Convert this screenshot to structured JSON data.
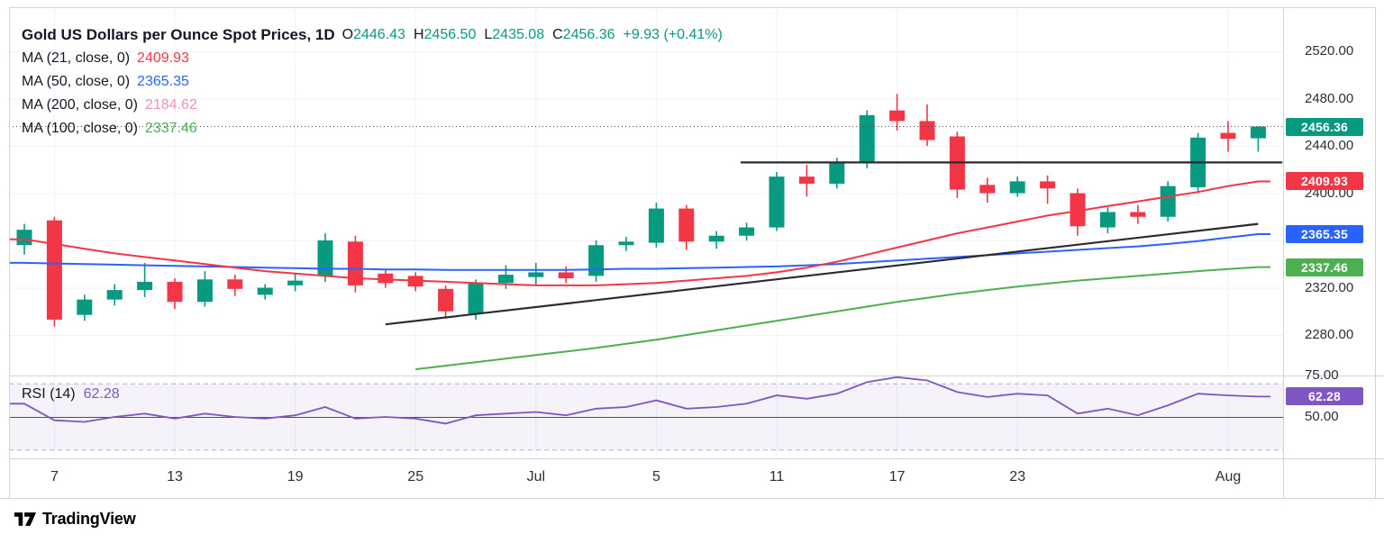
{
  "header": {
    "title": "Gold US Dollars per Ounce Spot Prices, 1D",
    "ohlc": {
      "o_label": "O",
      "o_value": "2446.43",
      "h_label": "H",
      "h_value": "2456.50",
      "l_label": "L",
      "l_value": "2435.08",
      "c_label": "C",
      "c_value": "2456.36",
      "change": "+9.93 (+0.41%)"
    },
    "ma_rows": [
      {
        "label": "MA (21, close, 0)",
        "value": "2409.93",
        "color": "#F23645"
      },
      {
        "label": "MA (50, close, 0)",
        "value": "2365.35",
        "color": "#2962FF"
      },
      {
        "label": "MA (200, close, 0)",
        "value": "2184.62",
        "color": "#F48FB1"
      },
      {
        "label": "MA (100, close, 0)",
        "value": "2337.46",
        "color": "#4CAF50"
      }
    ],
    "rsi": {
      "label": "RSI (14)",
      "value": "62.28",
      "color": "#7E57C2"
    }
  },
  "price_axis": {
    "ticks": [
      {
        "label": "2520.00",
        "price": 2520
      },
      {
        "label": "2480.00",
        "price": 2480
      },
      {
        "label": "2440.00",
        "price": 2440
      },
      {
        "label": "2400.00",
        "price": 2400
      },
      {
        "label": "2320.00",
        "price": 2320
      },
      {
        "label": "2280.00",
        "price": 2280
      }
    ],
    "badges": [
      {
        "label": "2456.36",
        "price": 2456.36,
        "bg": "#089981"
      },
      {
        "label": "2409.93",
        "price": 2409.93,
        "bg": "#F23645"
      },
      {
        "label": "2365.35",
        "price": 2365.35,
        "bg": "#2962FF"
      },
      {
        "label": "2337.46",
        "price": 2337.46,
        "bg": "#4CAF50"
      }
    ]
  },
  "rsi_axis": {
    "ticks": [
      {
        "label": "75.00",
        "value": 75
      },
      {
        "label": "50.00",
        "value": 50
      }
    ],
    "badge": {
      "label": "62.28",
      "value": 62.28,
      "bg": "#7E57C2"
    }
  },
  "time_axis": {
    "labels": [
      {
        "label": "7",
        "index": 1
      },
      {
        "label": "13",
        "index": 5
      },
      {
        "label": "19",
        "index": 9
      },
      {
        "label": "25",
        "index": 13
      },
      {
        "label": "Jul",
        "index": 17
      },
      {
        "label": "5",
        "index": 21
      },
      {
        "label": "11",
        "index": 25
      },
      {
        "label": "17",
        "index": 29
      },
      {
        "label": "23",
        "index": 33
      },
      {
        "label": "Aug",
        "index": 40
      }
    ]
  },
  "footer": {
    "logo_text": "TradingView"
  },
  "colors": {
    "up": "#089981",
    "down": "#F23645",
    "ma21": "#F23645",
    "ma50": "#2962FF",
    "ma100": "#4CAF50",
    "ma200": "#F48FB1",
    "rsi": "#7E57C2",
    "rsi_band_fill": "rgba(126,87,194,0.08)",
    "rsi_band_line": "#b7a8dc",
    "rsi_mid_line": "#4a4e59",
    "grid": "#f0f2f6",
    "separator": "#d1d4dc",
    "trendline": "#2b2b2b",
    "close_line": "#4a4a4a",
    "text": "#131722"
  },
  "chart_data": {
    "type": "candlestick",
    "title": "Gold US Dollars per Ounce Spot Prices, 1D",
    "timeframe": "1D",
    "last_bar": {
      "open": 2446.43,
      "high": 2456.5,
      "low": 2435.08,
      "close": 2456.36,
      "change": 9.93,
      "change_pct": 0.41
    },
    "price_axis_ticks": [
      2280,
      2320,
      2360,
      2400,
      2440,
      2480,
      2520
    ],
    "candles": [
      [
        2356,
        2374,
        2348,
        2369
      ],
      [
        2377,
        2380,
        2287,
        2293
      ],
      [
        2297,
        2314,
        2292,
        2310
      ],
      [
        2310,
        2323,
        2305,
        2318
      ],
      [
        2318,
        2341,
        2312,
        2325
      ],
      [
        2325,
        2328,
        2302,
        2308
      ],
      [
        2308,
        2334,
        2304,
        2327
      ],
      [
        2327,
        2331,
        2313,
        2319
      ],
      [
        2314,
        2323,
        2310,
        2320
      ],
      [
        2322,
        2332,
        2317,
        2326
      ],
      [
        2330,
        2366,
        2325,
        2360
      ],
      [
        2359,
        2364,
        2316,
        2322
      ],
      [
        2332,
        2336,
        2320,
        2324
      ],
      [
        2330,
        2333,
        2317,
        2321
      ],
      [
        2319,
        2322,
        2294,
        2300
      ],
      [
        2298,
        2327,
        2293,
        2324
      ],
      [
        2324,
        2339,
        2319,
        2331
      ],
      [
        2329,
        2341,
        2322,
        2333
      ],
      [
        2333,
        2338,
        2324,
        2328
      ],
      [
        2330,
        2360,
        2325,
        2356
      ],
      [
        2356,
        2363,
        2351,
        2359
      ],
      [
        2358,
        2392,
        2354,
        2387
      ],
      [
        2387,
        2390,
        2352,
        2359
      ],
      [
        2359,
        2368,
        2353,
        2364
      ],
      [
        2364,
        2375,
        2360,
        2371
      ],
      [
        2371,
        2418,
        2368,
        2414
      ],
      [
        2414,
        2424,
        2397,
        2408
      ],
      [
        2408,
        2430,
        2404,
        2426
      ],
      [
        2426,
        2470,
        2421,
        2466
      ],
      [
        2470,
        2484,
        2453,
        2461
      ],
      [
        2461,
        2475,
        2440,
        2445
      ],
      [
        2448,
        2452,
        2396,
        2403
      ],
      [
        2407,
        2413,
        2392,
        2400
      ],
      [
        2400,
        2414,
        2397,
        2410
      ],
      [
        2410,
        2415,
        2391,
        2404
      ],
      [
        2400,
        2404,
        2364,
        2372
      ],
      [
        2371,
        2388,
        2366,
        2384
      ],
      [
        2384,
        2390,
        2374,
        2380
      ],
      [
        2380,
        2410,
        2376,
        2406
      ],
      [
        2405,
        2451,
        2400,
        2447
      ],
      [
        2451,
        2461,
        2435,
        2446
      ],
      [
        2446.43,
        2456.5,
        2435.08,
        2456.36
      ]
    ],
    "overlays": {
      "ma21": [
        2361,
        2357,
        2353,
        2349,
        2346,
        2343,
        2340,
        2337,
        2334,
        2332,
        2330,
        2328,
        2327,
        2326,
        2325,
        2324,
        2323,
        2322,
        2322,
        2322,
        2323,
        2324,
        2326,
        2328,
        2330,
        2333,
        2337,
        2342,
        2348,
        2354,
        2360,
        2366,
        2371,
        2376,
        2381,
        2385,
        2389,
        2393,
        2397,
        2401,
        2406,
        2409.93
      ],
      "ma50": [
        2341,
        2340.5,
        2340,
        2339.5,
        2339,
        2338.5,
        2338,
        2337.5,
        2337,
        2336.5,
        2336,
        2336,
        2335.5,
        2335.5,
        2335,
        2335,
        2335,
        2335,
        2335,
        2335.5,
        2336,
        2336,
        2336.5,
        2337,
        2337.5,
        2338,
        2339,
        2340,
        2341.5,
        2343,
        2344.5,
        2346,
        2347.5,
        2349,
        2350.5,
        2352,
        2353.5,
        2355,
        2357,
        2359.5,
        2362.5,
        2365.35
      ],
      "ma100": [
        null,
        null,
        null,
        null,
        null,
        null,
        null,
        null,
        null,
        null,
        null,
        null,
        null,
        2251,
        2254,
        2257,
        2260,
        2263,
        2266,
        2269,
        2272.5,
        2276,
        2280,
        2284,
        2288,
        2292,
        2296,
        2300,
        2304,
        2308,
        2311.5,
        2315,
        2318,
        2321,
        2323.5,
        2326,
        2328,
        2330,
        2332,
        2334,
        2335.8,
        2337.46
      ],
      "ma200_value": 2184.62
    },
    "rsi": {
      "period": 14,
      "bands": [
        30,
        70
      ],
      "mid": 50,
      "last": 62.28,
      "values": [
        58,
        48,
        47,
        50,
        52,
        49,
        52,
        50,
        49,
        51,
        56,
        49,
        50,
        49,
        46,
        51,
        52,
        53,
        51,
        55,
        56,
        60,
        55,
        56,
        58,
        63,
        61,
        64,
        71,
        74,
        72,
        65,
        62,
        64,
        63,
        52,
        55,
        51,
        57,
        64,
        63,
        62.28
      ]
    },
    "trendlines": [
      {
        "i1": 12,
        "p1": 2289,
        "i2": 41,
        "p2": 2374
      },
      {
        "i1": 23.8,
        "p1": 2426,
        "i2": 41.8,
        "p2": 2426
      }
    ],
    "close_line": 2456.36
  }
}
